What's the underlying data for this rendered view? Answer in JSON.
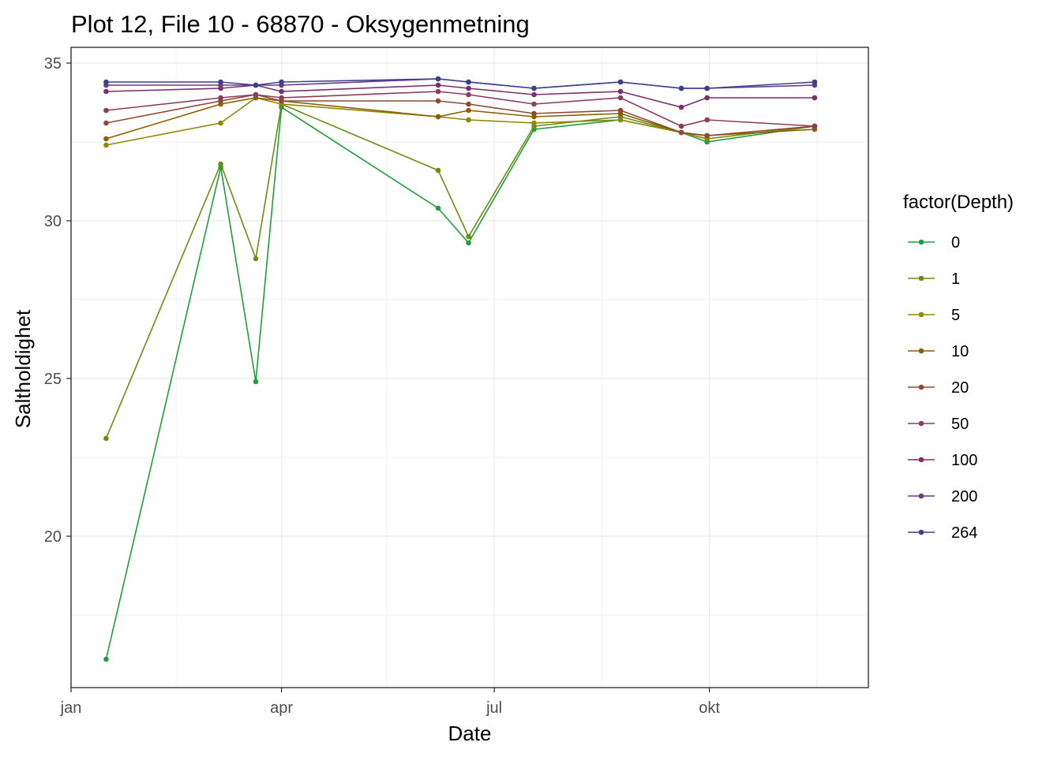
{
  "chart_data": {
    "type": "line",
    "title": "Plot 12, File 10 - 68870  -  Oksygenmetning",
    "xlabel": "Date",
    "ylabel": "Saltholdighet",
    "x_ticks": [
      "jan",
      "apr",
      "jul",
      "okt"
    ],
    "y_ticks": [
      20,
      25,
      30,
      35
    ],
    "ylim": [
      15.2,
      35.5
    ],
    "xlim": [
      "2017-01-01",
      "2017-12-08"
    ],
    "grid": true,
    "legend": {
      "title": "factor(Depth)",
      "position": "right"
    },
    "x": [
      "2017-01-16",
      "2017-03-06",
      "2017-03-21",
      "2017-04-01",
      "2017-06-07",
      "2017-06-20",
      "2017-07-18",
      "2017-08-24",
      "2017-09-19",
      "2017-09-30",
      "2017-11-15"
    ],
    "series": [
      {
        "name": "0",
        "color": "#1e9e3e",
        "values": [
          16.1,
          31.7,
          24.9,
          33.6,
          30.4,
          29.3,
          32.9,
          33.2,
          32.8,
          32.5,
          33.0
        ]
      },
      {
        "name": "1",
        "color": "#6b8e0f",
        "values": [
          23.1,
          31.8,
          28.8,
          33.7,
          31.6,
          29.5,
          33.0,
          33.3,
          32.8,
          32.6,
          33.0
        ]
      },
      {
        "name": "5",
        "color": "#8c8a00",
        "values": [
          32.4,
          33.1,
          33.9,
          33.7,
          33.3,
          33.2,
          33.1,
          33.2,
          32.8,
          32.6,
          33.0
        ]
      },
      {
        "name": "10",
        "color": "#8b5e00",
        "values": [
          32.6,
          33.7,
          33.9,
          33.8,
          33.3,
          33.5,
          33.3,
          33.4,
          32.8,
          32.7,
          32.9
        ]
      },
      {
        "name": "20",
        "color": "#8c4a32",
        "values": [
          33.1,
          33.8,
          34.0,
          33.8,
          33.8,
          33.7,
          33.4,
          33.5,
          32.8,
          32.7,
          33.0
        ]
      },
      {
        "name": "50",
        "color": "#8a3e5c",
        "values": [
          33.5,
          33.9,
          34.0,
          33.9,
          34.1,
          34.0,
          33.7,
          33.9,
          33.0,
          33.2,
          33.0
        ]
      },
      {
        "name": "100",
        "color": "#7d2e6b",
        "values": [
          34.1,
          34.2,
          34.3,
          34.1,
          34.3,
          34.2,
          34.0,
          34.1,
          33.6,
          33.9,
          33.9
        ]
      },
      {
        "name": "200",
        "color": "#6b3a8a",
        "values": [
          34.3,
          34.3,
          34.3,
          34.3,
          34.5,
          34.4,
          34.2,
          34.4,
          34.2,
          34.2,
          34.3
        ]
      },
      {
        "name": "264",
        "color": "#3d3f8a",
        "values": [
          34.4,
          34.4,
          34.3,
          34.4,
          34.5,
          34.4,
          34.2,
          34.4,
          34.2,
          34.2,
          34.4
        ]
      }
    ]
  }
}
